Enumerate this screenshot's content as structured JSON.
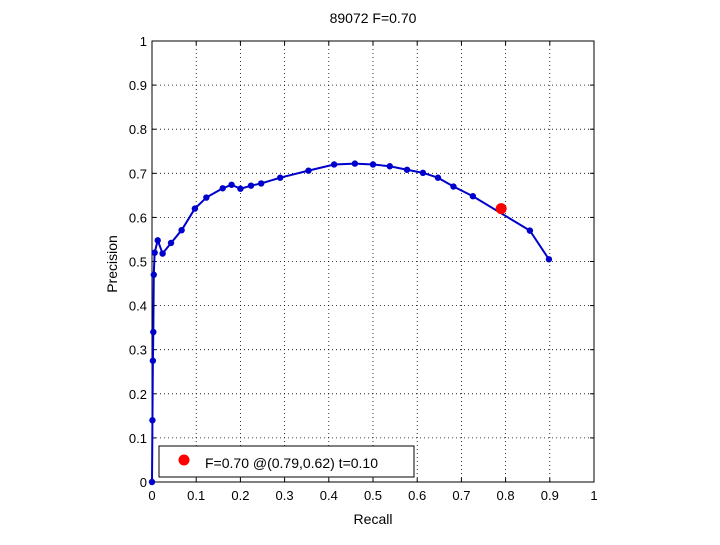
{
  "chart_data": {
    "type": "line",
    "title": "89072 F=0.70",
    "xlabel": "Recall",
    "ylabel": "Precision",
    "xlim": [
      0,
      1
    ],
    "ylim": [
      0,
      1
    ],
    "xticks": [
      "0",
      "0.1",
      "0.2",
      "0.3",
      "0.4",
      "0.5",
      "0.6",
      "0.7",
      "0.8",
      "0.9",
      "1"
    ],
    "yticks": [
      "0",
      "0.1",
      "0.2",
      "0.3",
      "0.4",
      "0.5",
      "0.6",
      "0.7",
      "0.8",
      "0.9",
      "1"
    ],
    "grid": true,
    "legend_position": "bottom-left",
    "series": [
      {
        "color": "#0000cc",
        "x": [
          0.0,
          0.001,
          0.002,
          0.003,
          0.004,
          0.006,
          0.013,
          0.024,
          0.043,
          0.067,
          0.097,
          0.123,
          0.16,
          0.18,
          0.2,
          0.224,
          0.247,
          0.29,
          0.354,
          0.412,
          0.459,
          0.5,
          0.538,
          0.577,
          0.613,
          0.647,
          0.682,
          0.726,
          0.855,
          0.898
        ],
        "y": [
          0.0,
          0.14,
          0.275,
          0.34,
          0.47,
          0.52,
          0.548,
          0.518,
          0.542,
          0.571,
          0.62,
          0.645,
          0.666,
          0.674,
          0.665,
          0.672,
          0.677,
          0.69,
          0.706,
          0.72,
          0.722,
          0.72,
          0.716,
          0.708,
          0.701,
          0.69,
          0.67,
          0.648,
          0.57,
          0.505
        ]
      }
    ],
    "highlight_point": {
      "x": 0.79,
      "y": 0.62,
      "color": "#ff0000"
    },
    "legend_label": "F=0.70 @(0.79,0.62) t=0.10"
  }
}
